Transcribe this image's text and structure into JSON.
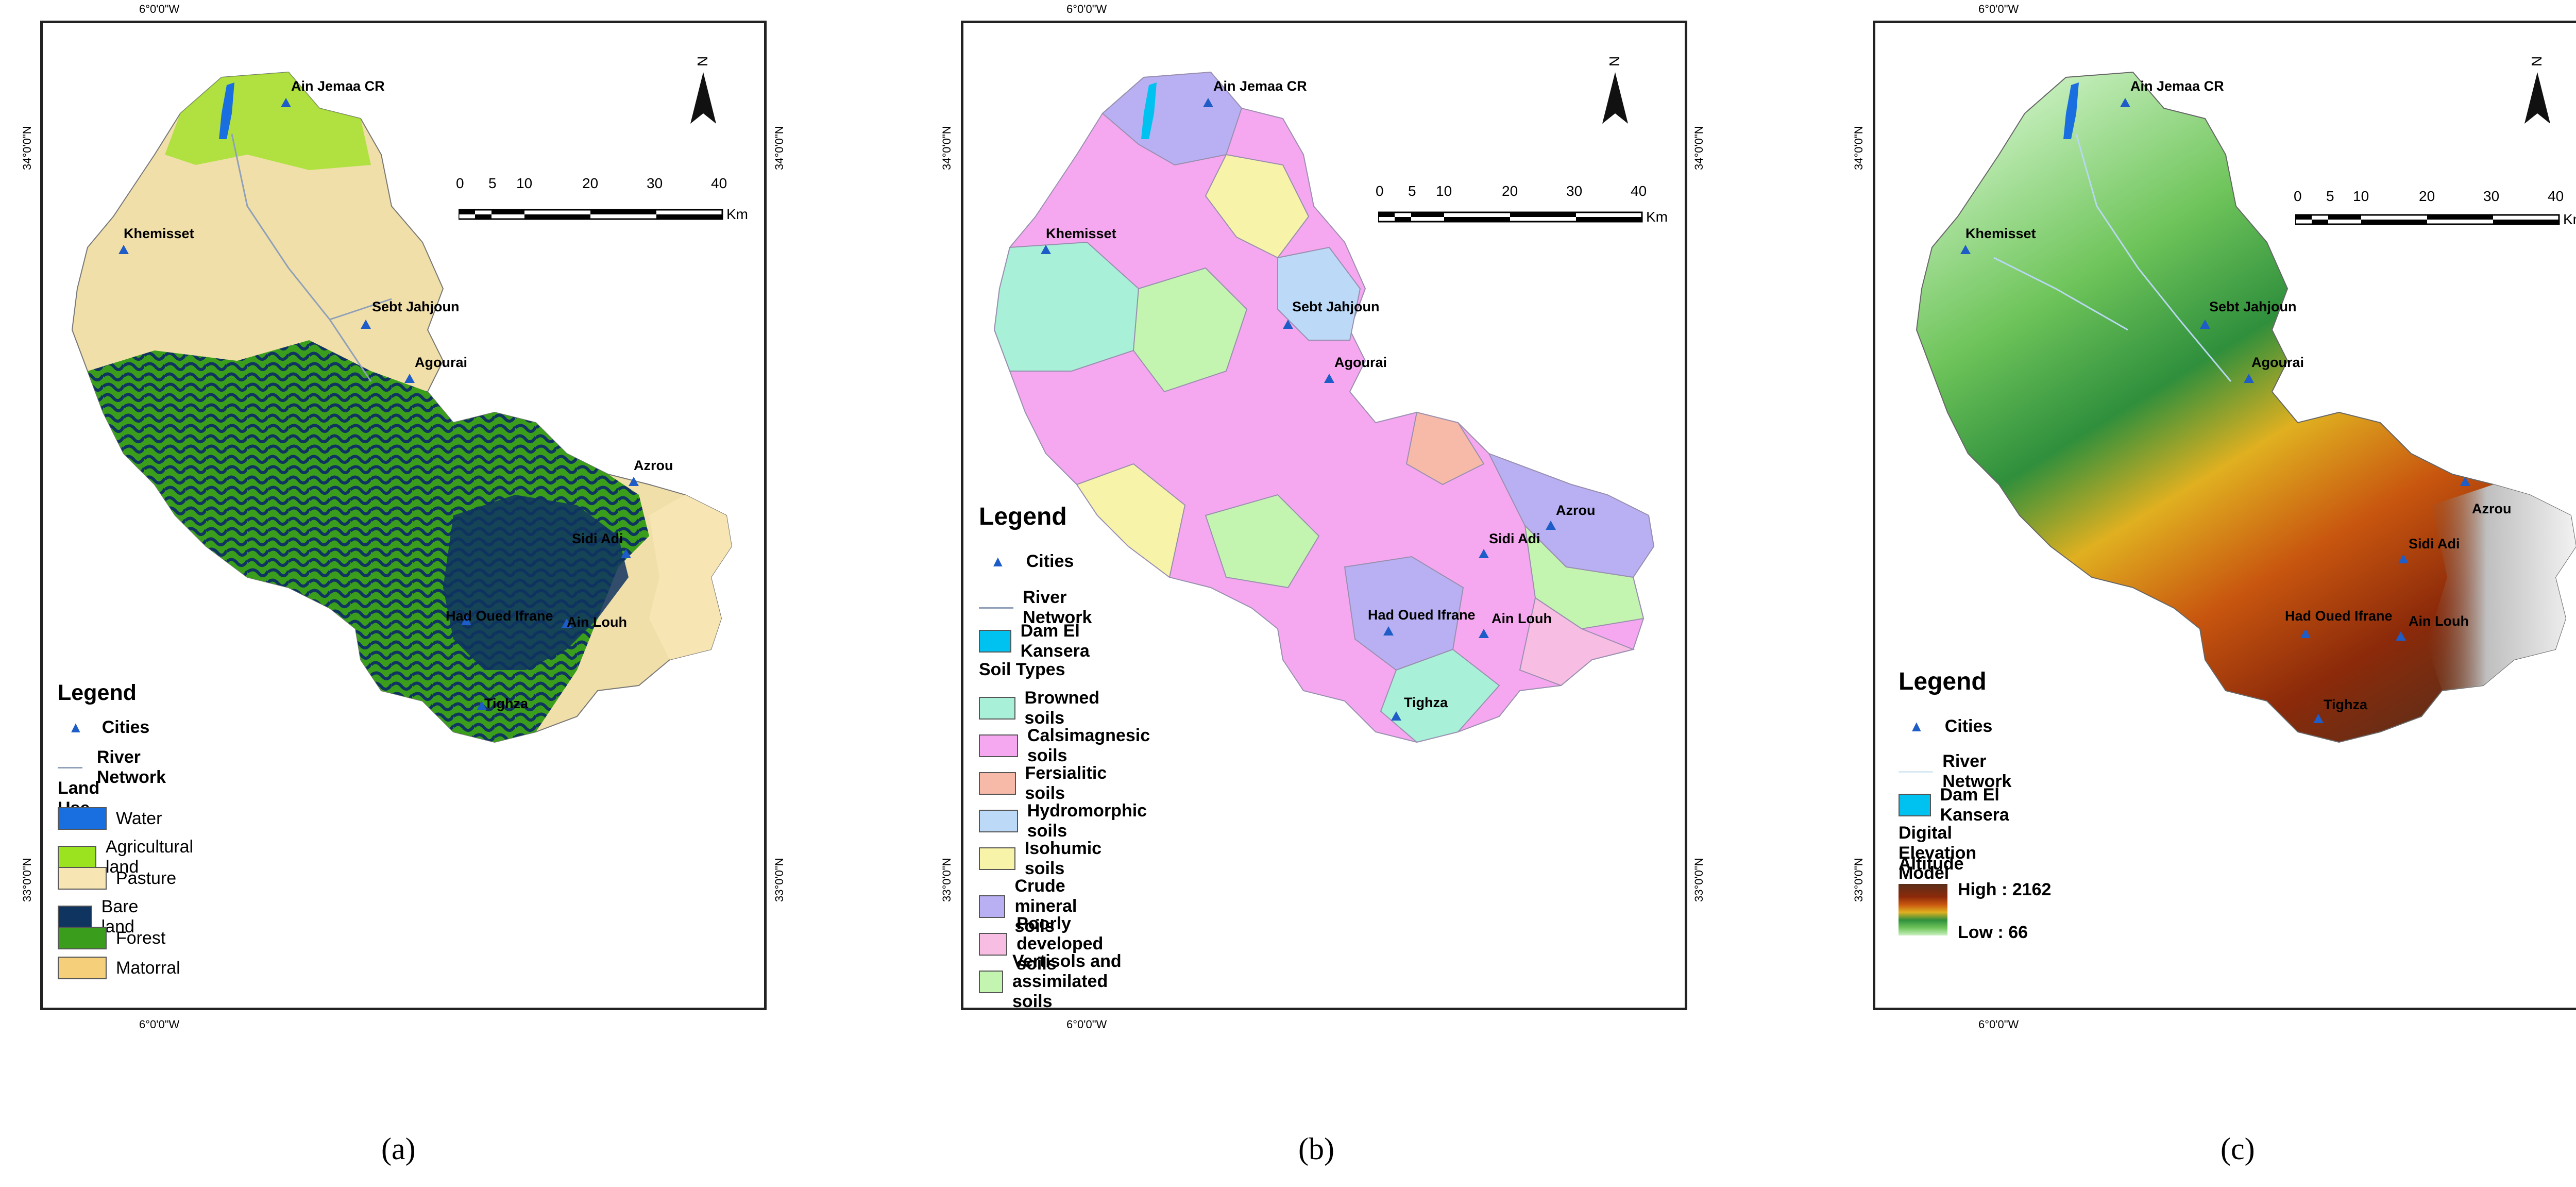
{
  "coordinates": {
    "lon_top": "6°0'0\"W",
    "lon_bottom": "6°0'0\"W",
    "lat_north": "34°0'0\"N",
    "lat_south": "33°0'0\"N"
  },
  "cities": {
    "ain_jemaa": "Ain Jemaa CR",
    "khemisset": "Khemisset",
    "sebt_jahjoun": "Sebt Jahjoun",
    "agourai": "Agourai",
    "azrou": "Azrou",
    "sidi_adi": "Sidi Adi",
    "had_oued_ifrane": "Had Oued Ifrane",
    "ain_louh": "Ain Louh",
    "tighza": "Tighza"
  },
  "scale_bar": {
    "ticks": [
      "0",
      "5",
      "10",
      "20",
      "30",
      "40"
    ],
    "unit": "Km"
  },
  "panel_a": {
    "label": "(a)",
    "legend_title": "Legend",
    "cities_label": "Cities",
    "river_label": "River Network",
    "section_title": "Land Use",
    "classes": [
      {
        "label": "Water",
        "color": "#1a6fe0"
      },
      {
        "label": "Agricultural land",
        "color": "#9be21f"
      },
      {
        "label": "Pasture",
        "color": "#f7e6b4"
      },
      {
        "label": "Bare land",
        "color": "#0f3460"
      },
      {
        "label": "Forest",
        "color": "#3a9e1c"
      },
      {
        "label": "Matorral",
        "color": "#f5cf7a"
      }
    ]
  },
  "panel_b": {
    "label": "(b)",
    "legend_title": "Legend",
    "cities_label": "Cities",
    "river_label": "River Network",
    "dam_label": "Dam El Kansera",
    "dam_color": "#00c2f0",
    "section_title": "Soil Types",
    "classes": [
      {
        "label": "Browned soils",
        "color": "#a8f0d8"
      },
      {
        "label": "Calsimagnesic soils",
        "color": "#f5a8ef"
      },
      {
        "label": "Fersialitic soils",
        "color": "#f7b9a8"
      },
      {
        "label": "Hydromorphic soils",
        "color": "#bcd9f7"
      },
      {
        "label": "Isohumic soils",
        "color": "#f7f3a8"
      },
      {
        "label": "Crude mineral soils",
        "color": "#b8b0f2"
      },
      {
        "label": "Poorly developed soils",
        "color": "#f7bde2"
      },
      {
        "label": "Vertisols and assimilated soils",
        "color": "#c4f5b0"
      }
    ]
  },
  "panel_c": {
    "label": "(c)",
    "legend_title": "Legend",
    "cities_label": "Cities",
    "river_label": "River Network",
    "dam_label": "Dam El Kansera",
    "dam_color": "#00c2f0",
    "section_title": "Digital Elevation Model",
    "altitude_label": "Altitude",
    "high_label": "High : 2162",
    "low_label": "Low : 66"
  }
}
